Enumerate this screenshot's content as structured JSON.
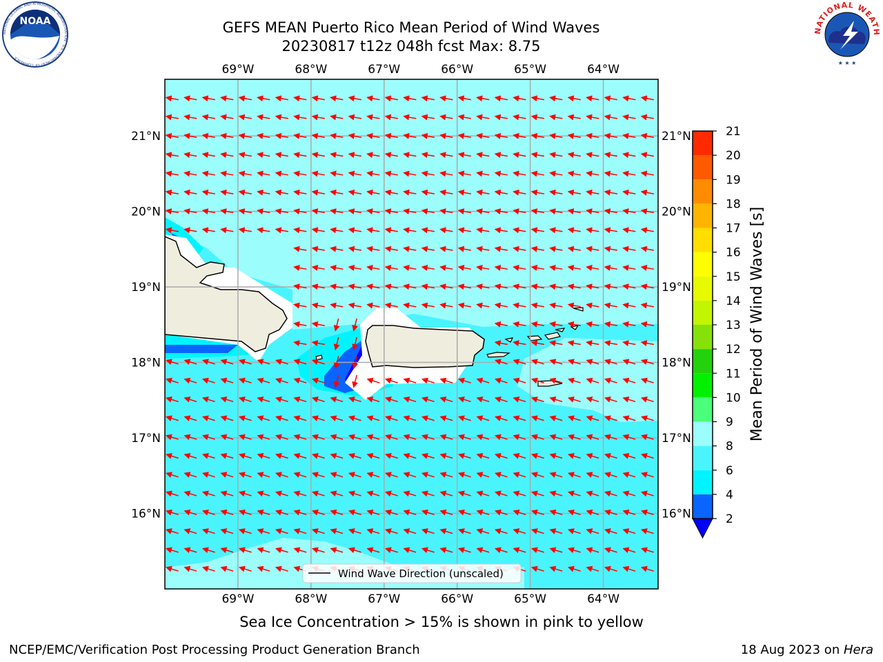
{
  "header": {
    "title_line1": "GEFS MEAN Puerto Rico Mean Period of Wind Waves",
    "title_line2": "20230817 t12z 048h fcst   Max: 8.75"
  },
  "logos": {
    "noara": "NOAA",
    "noaa_ring": "NATIONAL OCEANIC AND ATMOSPHERIC ADMINISTRATION · U.S. DEPARTMENT OF COMMERCE",
    "nws_ring": "NATIONAL WEATHER SERVICE"
  },
  "map": {
    "lon_labels": [
      "69°W",
      "68°W",
      "67°W",
      "66°W",
      "65°W",
      "64°W"
    ],
    "lon_values": [
      -69,
      -68,
      -67,
      -66,
      -65,
      -64
    ],
    "lat_labels": [
      "21°N",
      "20°N",
      "19°N",
      "18°N",
      "17°N",
      "16°N"
    ],
    "lat_values": [
      21,
      20,
      19,
      18,
      17,
      16
    ],
    "lon_range": [
      -70,
      -63.25
    ],
    "lat_range": [
      15.0,
      21.75
    ],
    "arrow_color": "#ff0000",
    "legend_label": "Wind Wave Direction (unscaled)"
  },
  "colorbar": {
    "label": "Mean Period of Wind Waves [s]",
    "tick_labels": [
      "2",
      "4",
      "6",
      "8",
      "9",
      "10",
      "11",
      "12",
      "13",
      "14",
      "15",
      "16",
      "17",
      "18",
      "19",
      "20",
      "21"
    ],
    "levels": [
      2,
      4,
      6,
      8,
      9,
      10,
      11,
      12,
      13,
      14,
      15,
      16,
      17,
      18,
      19,
      20,
      21
    ],
    "colors": [
      "#0a64ff",
      "#00f4ff",
      "#4af4ff",
      "#9cfdfd",
      "#4bff7d",
      "#00f000",
      "#23d10e",
      "#86e10a",
      "#c2f500",
      "#e7fa00",
      "#ffff00",
      "#ffde00",
      "#ffb400",
      "#ff8c00",
      "#ff5a00",
      "#ff2a00",
      "#ff0000"
    ],
    "under_color": "#0000ff"
  },
  "footer": {
    "subtitle": "Sea Ice Concentration > 15% is shown in pink to yellow",
    "credit": "NCEP/EMC/Verification Post Processing Product Generation Branch",
    "date_prefix": "18 Aug 2023 on ",
    "machine": "Hera"
  }
}
